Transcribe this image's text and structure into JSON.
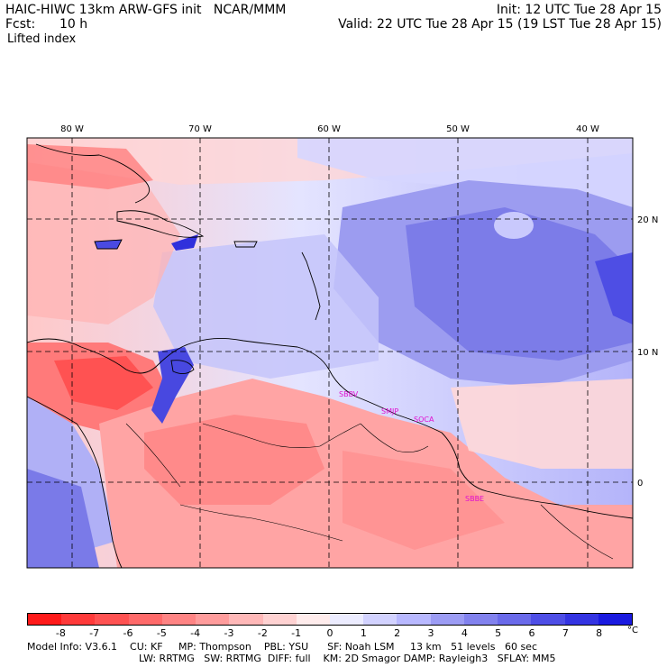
{
  "header": {
    "line1_left": "HAIC-HIWC 13km ARW-GFS init   NCAR/MMM",
    "line1_right": "Init: 12 UTC Tue 28 Apr 15",
    "line2_left_label": "Fcst:",
    "line2_left_value": "10 h",
    "line2_right": "Valid: 22 UTC Tue 28 Apr 15 (19 LST Tue 28 Apr 15)",
    "field": "Lifted index"
  },
  "map": {
    "lon_labels": [
      "80 W",
      "70 W",
      "60 W",
      "50 W",
      "40 W"
    ],
    "lat_labels": [
      "20 N",
      "10 N",
      "0"
    ],
    "stations": [
      "SBBV",
      "SMJP",
      "SOCA",
      "SBBE"
    ]
  },
  "colorbar": {
    "unit": "°C",
    "labels": [
      "-8",
      "-7",
      "-6",
      "-5",
      "-4",
      "-3",
      "-2",
      "-1",
      "0",
      "1",
      "2",
      "3",
      "4",
      "5",
      "6",
      "7",
      "8"
    ],
    "colors": [
      "#ff1a1a",
      "#ff3a3a",
      "#ff5252",
      "#ff6a6a",
      "#ff8484",
      "#ff9c9c",
      "#ffb8b8",
      "#ffd2d2",
      "#ffecec",
      "#ececff",
      "#d2d2ff",
      "#b8b8ff",
      "#9c9cf4",
      "#8282ee",
      "#6a6aea",
      "#4e4ee6",
      "#3434e2",
      "#1a1ae0"
    ]
  },
  "footer": {
    "line1": "Model Info: V3.6.1    CU: KF     MP: Thompson    PBL: YSU      SF: Noah LSM     13 km   51 levels   60 sec",
    "line2": "LW: RRTMG   SW: RRTMG  DIFF: full    KM: 2D Smagor DAMP: Rayleigh3   SFLAY: MM5"
  }
}
